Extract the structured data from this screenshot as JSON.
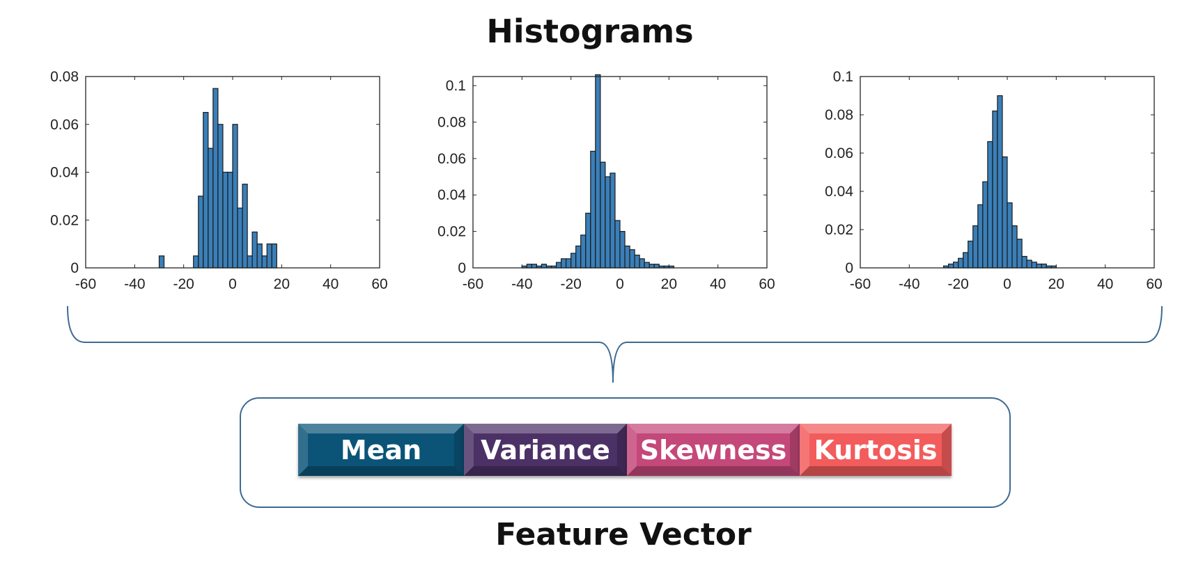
{
  "title": "Histograms",
  "chart_data": [
    {
      "type": "bar",
      "title": "",
      "xlabel": "",
      "ylabel": "",
      "xlim": [
        -60,
        60
      ],
      "ylim": [
        0,
        0.08
      ],
      "xticks": [
        "-60",
        "-40",
        "-20",
        "0",
        "20",
        "40",
        "60"
      ],
      "yticks": [
        "0",
        "0.02",
        "0.04",
        "0.06",
        "0.08"
      ],
      "bin_width": 2,
      "bars": [
        {
          "x": -29,
          "y": 0.005
        },
        {
          "x": -15,
          "y": 0.005
        },
        {
          "x": -13,
          "y": 0.03
        },
        {
          "x": -11,
          "y": 0.065
        },
        {
          "x": -9,
          "y": 0.05
        },
        {
          "x": -7,
          "y": 0.075
        },
        {
          "x": -5,
          "y": 0.06
        },
        {
          "x": -3,
          "y": 0.04
        },
        {
          "x": -1,
          "y": 0.04
        },
        {
          "x": 1,
          "y": 0.06
        },
        {
          "x": 3,
          "y": 0.025
        },
        {
          "x": 5,
          "y": 0.035
        },
        {
          "x": 7,
          "y": 0.005
        },
        {
          "x": 9,
          "y": 0.015
        },
        {
          "x": 11,
          "y": 0.01
        },
        {
          "x": 13,
          "y": 0.005
        },
        {
          "x": 15,
          "y": 0.01
        },
        {
          "x": 17,
          "y": 0.01
        }
      ]
    },
    {
      "type": "bar",
      "title": "",
      "xlabel": "",
      "ylabel": "",
      "xlim": [
        -60,
        60
      ],
      "ylim": [
        0,
        0.105
      ],
      "xticks": [
        "-60",
        "-40",
        "-20",
        "0",
        "20",
        "40",
        "60"
      ],
      "yticks": [
        "0",
        "0.02",
        "0.04",
        "0.06",
        "0.08",
        "0.1"
      ],
      "bin_width": 2,
      "bars": [
        {
          "x": -39,
          "y": 0.001
        },
        {
          "x": -37,
          "y": 0.002
        },
        {
          "x": -35,
          "y": 0.002
        },
        {
          "x": -33,
          "y": 0.001
        },
        {
          "x": -31,
          "y": 0.002
        },
        {
          "x": -29,
          "y": 0.001
        },
        {
          "x": -27,
          "y": 0.001
        },
        {
          "x": -25,
          "y": 0.003
        },
        {
          "x": -23,
          "y": 0.005
        },
        {
          "x": -21,
          "y": 0.005
        },
        {
          "x": -19,
          "y": 0.008
        },
        {
          "x": -17,
          "y": 0.012
        },
        {
          "x": -15,
          "y": 0.018
        },
        {
          "x": -13,
          "y": 0.03
        },
        {
          "x": -11,
          "y": 0.064
        },
        {
          "x": -9,
          "y": 0.106
        },
        {
          "x": -7,
          "y": 0.058
        },
        {
          "x": -5,
          "y": 0.05
        },
        {
          "x": -3,
          "y": 0.052
        },
        {
          "x": -1,
          "y": 0.026
        },
        {
          "x": 1,
          "y": 0.02
        },
        {
          "x": 3,
          "y": 0.012
        },
        {
          "x": 5,
          "y": 0.01
        },
        {
          "x": 7,
          "y": 0.007
        },
        {
          "x": 9,
          "y": 0.005
        },
        {
          "x": 11,
          "y": 0.003
        },
        {
          "x": 13,
          "y": 0.002
        },
        {
          "x": 15,
          "y": 0.002
        },
        {
          "x": 17,
          "y": 0.001
        },
        {
          "x": 19,
          "y": 0.001
        },
        {
          "x": 21,
          "y": 0.001
        }
      ]
    },
    {
      "type": "bar",
      "title": "",
      "xlabel": "",
      "ylabel": "",
      "xlim": [
        -60,
        60
      ],
      "ylim": [
        0,
        0.1
      ],
      "xticks": [
        "-60",
        "-40",
        "-20",
        "0",
        "20",
        "40",
        "60"
      ],
      "yticks": [
        "0",
        "0.02",
        "0.04",
        "0.06",
        "0.08",
        "0.1"
      ],
      "bin_width": 2,
      "bars": [
        {
          "x": -25,
          "y": 0.001
        },
        {
          "x": -23,
          "y": 0.002
        },
        {
          "x": -21,
          "y": 0.003
        },
        {
          "x": -19,
          "y": 0.005
        },
        {
          "x": -17,
          "y": 0.008
        },
        {
          "x": -15,
          "y": 0.014
        },
        {
          "x": -13,
          "y": 0.022
        },
        {
          "x": -11,
          "y": 0.033
        },
        {
          "x": -9,
          "y": 0.045
        },
        {
          "x": -7,
          "y": 0.066
        },
        {
          "x": -5,
          "y": 0.082
        },
        {
          "x": -3,
          "y": 0.09
        },
        {
          "x": -1,
          "y": 0.058
        },
        {
          "x": 1,
          "y": 0.034
        },
        {
          "x": 3,
          "y": 0.022
        },
        {
          "x": 5,
          "y": 0.015
        },
        {
          "x": 7,
          "y": 0.006
        },
        {
          "x": 9,
          "y": 0.004
        },
        {
          "x": 11,
          "y": 0.003
        },
        {
          "x": 13,
          "y": 0.002
        },
        {
          "x": 15,
          "y": 0.002
        },
        {
          "x": 17,
          "y": 0.001
        },
        {
          "x": 19,
          "y": 0.001
        }
      ]
    }
  ],
  "feature_vector": {
    "items": [
      {
        "label": "Mean",
        "color": "#0b5478"
      },
      {
        "label": "Variance",
        "color": "#4c3166"
      },
      {
        "label": "Skewness",
        "color": "#c4487a"
      },
      {
        "label": "Kurtosis",
        "color": "#f25c5c"
      }
    ],
    "caption": "Feature Vector"
  },
  "colors": {
    "bar_fill": "#3a7fb8",
    "bar_stroke": "#1a1a1a",
    "axis": "#222222",
    "brace": "#3d6a92"
  }
}
